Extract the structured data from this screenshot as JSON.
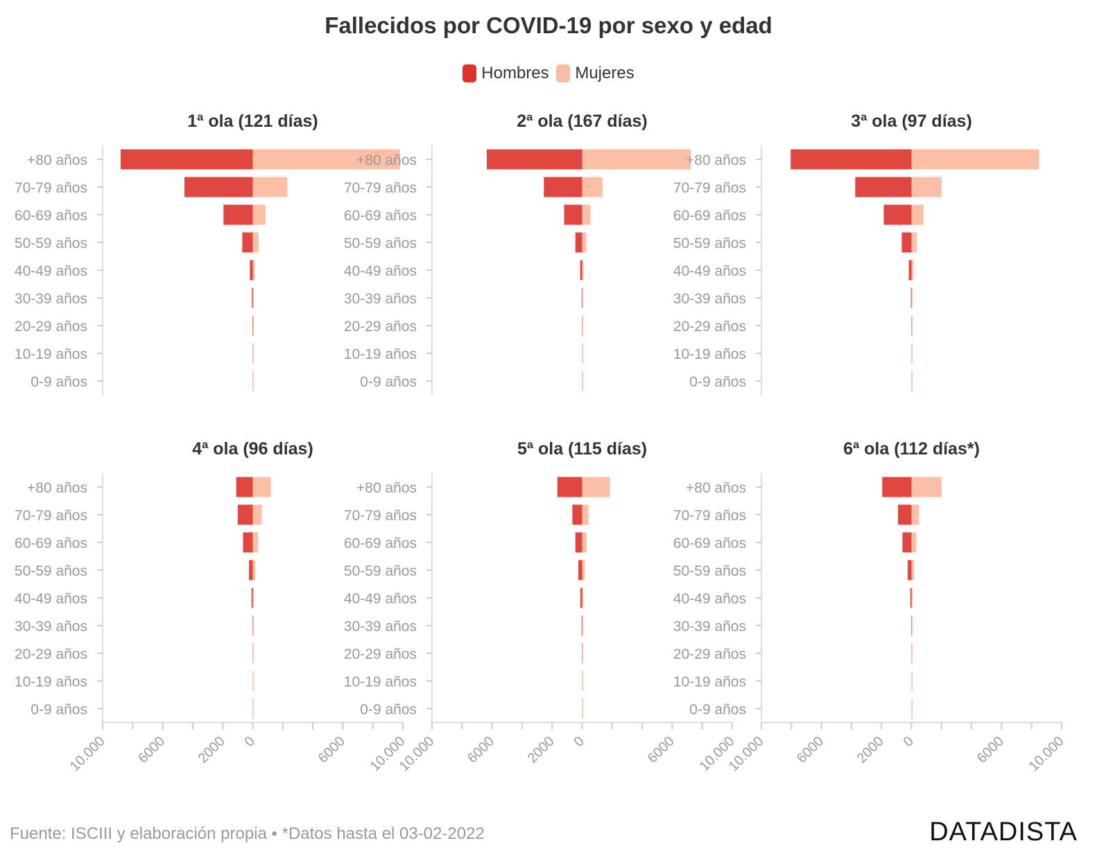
{
  "title": "Fallecidos por COVID-19 por sexo y edad",
  "legend": [
    {
      "label": "Hombres",
      "color": "#e0302a"
    },
    {
      "label": "Mujeres",
      "color": "#fbbca4"
    }
  ],
  "footer": {
    "source": "Fuente: ISCIII y elaboración propia • *Datos hasta el 03-02-2022",
    "brand": "DATADISTA"
  },
  "chart_data": {
    "type": "bar",
    "orientation": "horizontal-population-pyramid",
    "categories": [
      "+80 años",
      "70-79 años",
      "60-69 años",
      "50-59 años",
      "40-49 años",
      "30-39 años",
      "20-29 años",
      "10-19 años",
      "0-9 años"
    ],
    "x_ticks": [
      "10.000",
      "6000",
      "2000",
      "0",
      "6000",
      "10.000"
    ],
    "x_tick_values": [
      -10000,
      -6000,
      -2000,
      0,
      6000,
      10000
    ],
    "xlim": [
      -10000,
      10000
    ],
    "colors": {
      "hombres": "#e04640",
      "mujeres": "#fbbfa6"
    },
    "panels": [
      {
        "title": "1ª ola (121 días)",
        "series": [
          {
            "name": "Hombres",
            "values": [
              8800,
              4550,
              1950,
              700,
              190,
              60,
              25,
              8,
              5
            ]
          },
          {
            "name": "Mujeres",
            "values": [
              9800,
              2300,
              850,
              380,
              140,
              50,
              20,
              8,
              6
            ]
          }
        ]
      },
      {
        "title": "2ª ola (167 días)",
        "series": [
          {
            "name": "Hombres",
            "values": [
              6350,
              2550,
              1200,
              450,
              130,
              30,
              10,
              3,
              3
            ]
          },
          {
            "name": "Mujeres",
            "values": [
              7250,
              1350,
              550,
              280,
              90,
              25,
              8,
              3,
              3
            ]
          }
        ]
      },
      {
        "title": "3ª ola (97 días)",
        "series": [
          {
            "name": "Hombres",
            "values": [
              8050,
              3750,
              1850,
              650,
              180,
              40,
              15,
              3,
              3
            ]
          },
          {
            "name": "Mujeres",
            "values": [
              8500,
              2000,
              800,
              350,
              130,
              30,
              10,
              3,
              3
            ]
          }
        ]
      },
      {
        "title": "4ª ola (96 días)",
        "series": [
          {
            "name": "Hombres",
            "values": [
              1100,
              1000,
              650,
              250,
              80,
              20,
              8,
              2,
              2
            ]
          },
          {
            "name": "Mujeres",
            "values": [
              1200,
              600,
              350,
              170,
              60,
              15,
              8,
              2,
              2
            ]
          }
        ]
      },
      {
        "title": "5ª ola (115 días)",
        "series": [
          {
            "name": "Hombres",
            "values": [
              1650,
              650,
              450,
              250,
              120,
              35,
              12,
              3,
              2
            ]
          },
          {
            "name": "Mujeres",
            "values": [
              1850,
              420,
              300,
              180,
              80,
              25,
              10,
              2,
              2
            ]
          }
        ]
      },
      {
        "title": "6ª ola (112 días*)",
        "series": [
          {
            "name": "Hombres",
            "values": [
              1950,
              900,
              600,
              250,
              80,
              20,
              8,
              2,
              2
            ]
          },
          {
            "name": "Mujeres",
            "values": [
              2000,
              500,
              320,
              180,
              60,
              15,
              8,
              2,
              2
            ]
          }
        ]
      }
    ]
  }
}
